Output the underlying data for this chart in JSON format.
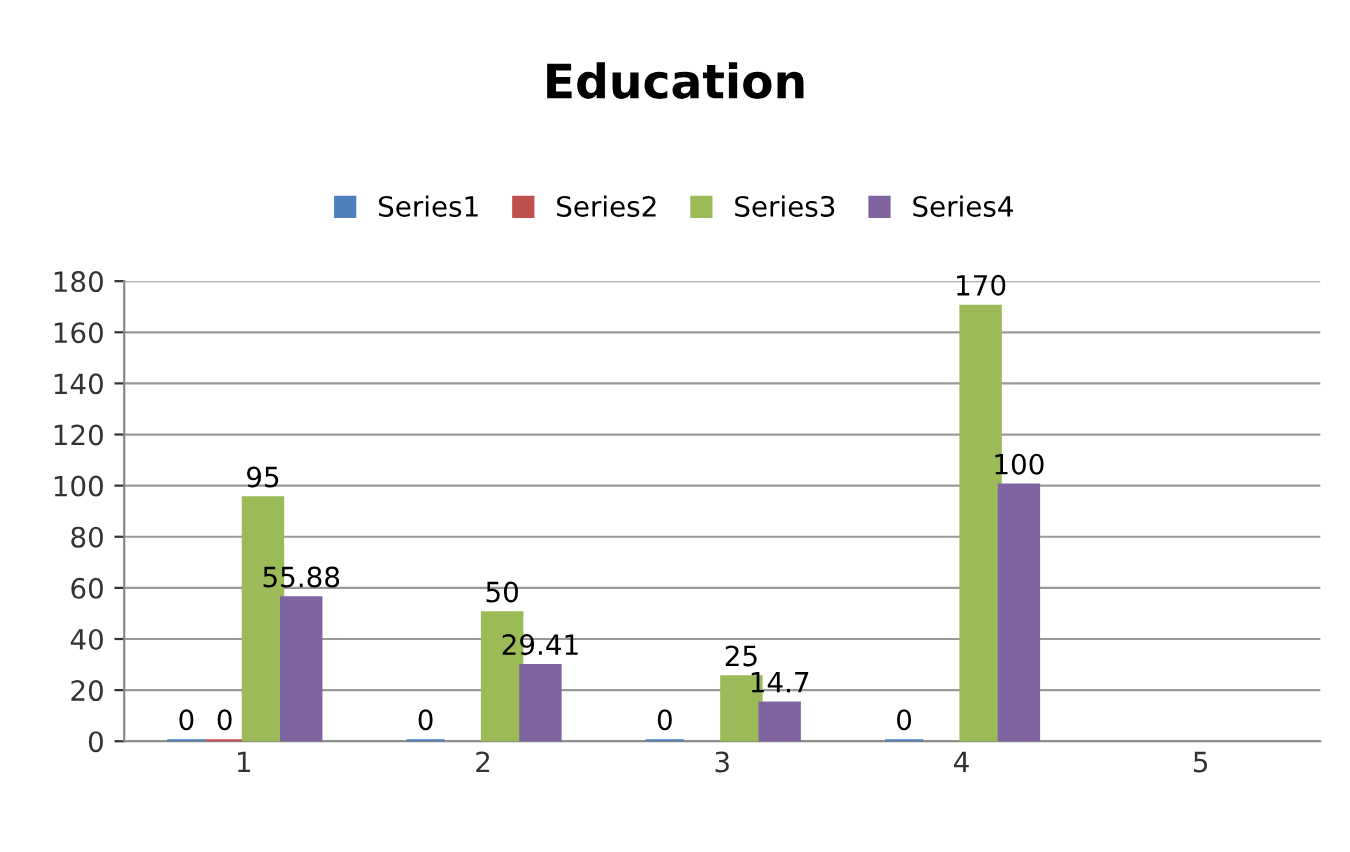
{
  "chart_data": {
    "type": "bar",
    "title": "Education",
    "categories": [
      "1",
      "2",
      "3",
      "4",
      "5"
    ],
    "series": [
      {
        "name": "Series1",
        "color": "#4f81bd",
        "values": [
          0,
          0,
          0,
          0,
          null
        ]
      },
      {
        "name": "Series2",
        "color": "#c0504d",
        "values": [
          0,
          null,
          null,
          null,
          null
        ]
      },
      {
        "name": "Series3",
        "color": "#9bbb59",
        "values": [
          95,
          50,
          25,
          170,
          null
        ]
      },
      {
        "name": "Series4",
        "color": "#8064a2",
        "values": [
          55.88,
          29.41,
          14.7,
          100,
          null
        ]
      }
    ],
    "ylim": [
      0,
      180
    ],
    "yticks": [
      0,
      20,
      40,
      60,
      80,
      100,
      120,
      140,
      160,
      180
    ],
    "grid": "y",
    "legend": "top",
    "data_labels": true
  }
}
